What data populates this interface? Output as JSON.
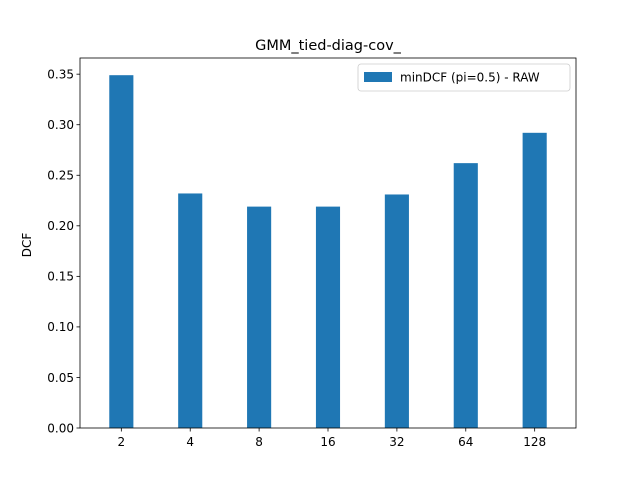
{
  "chart_data": {
    "type": "bar",
    "title": "GMM_tied-diag-cov_",
    "xlabel": "",
    "ylabel": "DCF",
    "categories": [
      "2",
      "4",
      "8",
      "16",
      "32",
      "64",
      "128"
    ],
    "series": [
      {
        "name": "minDCF (pi=0.5) - RAW",
        "color": "#1f77b4",
        "values": [
          0.349,
          0.232,
          0.219,
          0.219,
          0.231,
          0.262,
          0.292
        ]
      }
    ],
    "ylim": [
      0,
      0.366
    ],
    "yticks": [
      "0.00",
      "0.05",
      "0.10",
      "0.15",
      "0.20",
      "0.25",
      "0.30",
      "0.35"
    ],
    "grid": false,
    "legend_position": "top-right"
  }
}
